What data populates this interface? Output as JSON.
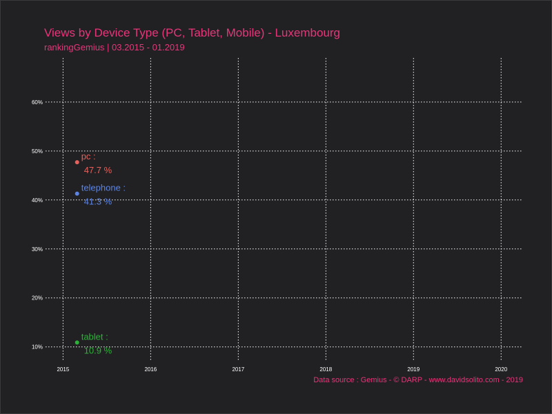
{
  "chart_data": {
    "type": "scatter",
    "title": "Views by Device Type (PC, Tablet, Mobile) - Luxembourg",
    "subtitle": "rankingGemius | 03.2015 - 01.2019",
    "caption": "Data source : Gemius - © DARP - www.davidsolito.com - 2019",
    "xlim": [
      2014.8,
      2020.25
    ],
    "ylim": [
      7,
      69
    ],
    "x_ticks": [
      "2015",
      "2016",
      "2017",
      "2018",
      "2019",
      "2020"
    ],
    "y_ticks": [
      {
        "value": 10,
        "label": "10%"
      },
      {
        "value": 20,
        "label": "20%"
      },
      {
        "value": 30,
        "label": "30%"
      },
      {
        "value": 40,
        "label": "40%"
      },
      {
        "value": 50,
        "label": "50%"
      },
      {
        "value": 60,
        "label": "60%"
      }
    ],
    "grid": true,
    "series": [
      {
        "name": "pc",
        "x": 2015.16,
        "y": 47.7,
        "label_name": "pc :",
        "label_value": "47.7 %",
        "color": "#e8605c"
      },
      {
        "name": "telephone",
        "x": 2015.16,
        "y": 41.3,
        "label_name": "telephone :",
        "label_value": "41.3 %",
        "color": "#5b84e6"
      },
      {
        "name": "tablet",
        "x": 2015.16,
        "y": 10.9,
        "label_name": "tablet :",
        "label_value": "10.9 %",
        "color": "#2ab336"
      }
    ]
  },
  "colors": {
    "background": "#212123",
    "accent": "#e8357a",
    "grid": "#ffffff"
  }
}
